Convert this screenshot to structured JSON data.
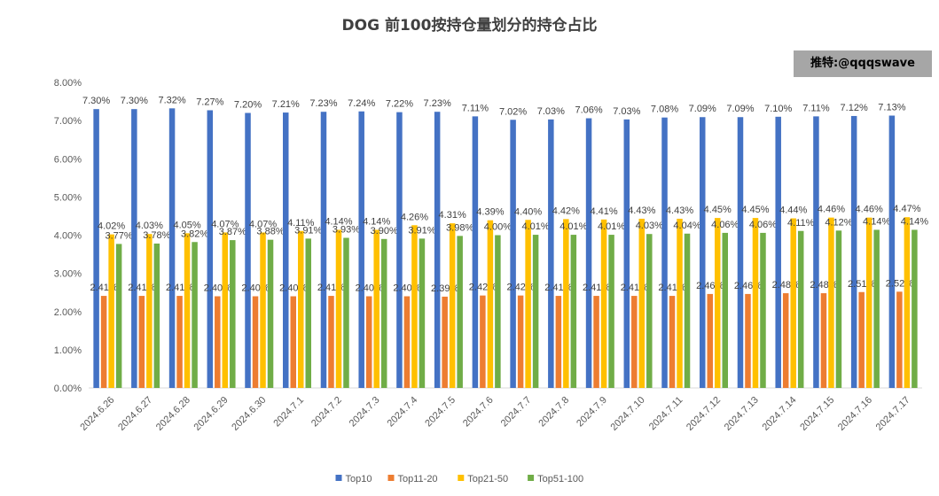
{
  "title": "DOG 前100按持仓量划分的持仓占比",
  "watermark": "推特:@qqqswave",
  "chart_data": {
    "type": "bar",
    "categories": [
      "2024.6.26",
      "2024.6.27",
      "2024.6.28",
      "2024.6.29",
      "2024.6.30",
      "2024.7.1",
      "2024.7.2",
      "2024.7.3",
      "2024.7.4",
      "2024.7.5",
      "2024.7.6",
      "2024.7.7",
      "2024.7.8",
      "2024.7.9",
      "2024.7.10",
      "2024.7.11",
      "2024.7.12",
      "2024.7.13",
      "2024.7.14",
      "2024.7.15",
      "2024.7.16",
      "2024.7.17"
    ],
    "series": [
      {
        "name": "Top10",
        "color": "#4472C4",
        "values": [
          7.3,
          7.3,
          7.32,
          7.27,
          7.2,
          7.21,
          7.23,
          7.24,
          7.22,
          7.23,
          7.11,
          7.02,
          7.03,
          7.06,
          7.03,
          7.08,
          7.09,
          7.09,
          7.1,
          7.11,
          7.12,
          7.13
        ]
      },
      {
        "name": "Top11-20",
        "color": "#ED7D31",
        "values": [
          2.41,
          2.41,
          2.41,
          2.4,
          2.4,
          2.4,
          2.41,
          2.4,
          2.4,
          2.39,
          2.42,
          2.42,
          2.41,
          2.41,
          2.41,
          2.41,
          2.46,
          2.46,
          2.48,
          2.48,
          2.51,
          2.52
        ]
      },
      {
        "name": "Top21-50",
        "color": "#FFC000",
        "values": [
          4.02,
          4.03,
          4.05,
          4.07,
          4.07,
          4.11,
          4.14,
          4.14,
          4.26,
          4.31,
          4.39,
          4.4,
          4.42,
          4.41,
          4.43,
          4.43,
          4.45,
          4.45,
          4.44,
          4.46,
          4.46,
          4.47
        ]
      },
      {
        "name": "Top51-100",
        "color": "#70AD47",
        "values": [
          3.77,
          3.78,
          3.82,
          3.87,
          3.88,
          3.91,
          3.93,
          3.9,
          3.91,
          3.98,
          4.0,
          4.01,
          4.01,
          4.01,
          4.03,
          4.04,
          4.06,
          4.06,
          4.11,
          4.12,
          4.14,
          4.14
        ]
      }
    ],
    "ylim": [
      0,
      8
    ],
    "ytick_step": 1,
    "y_format": "percent_2dp",
    "legend": "bottom",
    "grid": false
  }
}
